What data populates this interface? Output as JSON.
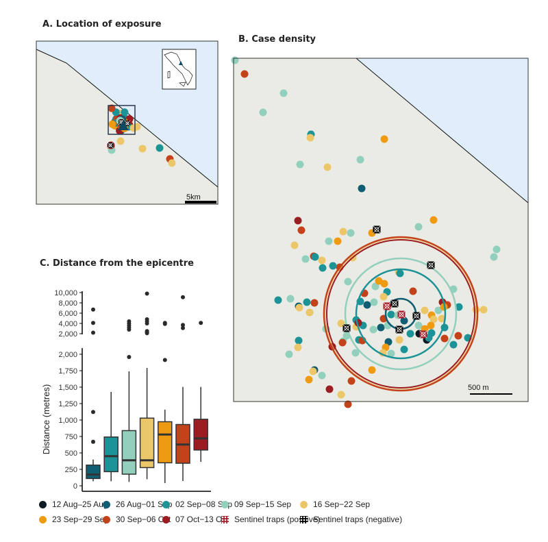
{
  "panels": {
    "a_title": "A. Location of exposure",
    "b_title": "B. Case density",
    "c_title": "C. Distance from the epicentre",
    "a_scale": "5km",
    "b_scale": "500 m"
  },
  "map_colors": {
    "sea": "#dfeefa",
    "land": "#ebebe6",
    "coast": "#111111"
  },
  "legend": [
    {
      "label": "12 Aug–25 Aug",
      "color": "#0b1a22",
      "type": "dot"
    },
    {
      "label": "26 Aug−01 Sep",
      "color": "#0f5e73",
      "type": "dot"
    },
    {
      "label": "02 Sep−08 Sep",
      "color": "#1c9396",
      "type": "dot"
    },
    {
      "label": "09 Sep−15 Sep",
      "color": "#92cfbd",
      "type": "dot"
    },
    {
      "label": "16 Sep−22 Sep",
      "color": "#ecc76a",
      "type": "dot"
    },
    {
      "label": "23 Sep−29 Sep",
      "color": "#ee9b12",
      "type": "dot"
    },
    {
      "label": "30 Sep−06 Oct",
      "color": "#c2431a",
      "type": "dot"
    },
    {
      "label": "07 Oct−13 Oct",
      "color": "#9b1c21",
      "type": "dot"
    },
    {
      "label": "Sentinel traps (positive)",
      "color": "#a31f2a",
      "type": "trap"
    },
    {
      "label": "Sentinel traps (negative)",
      "color": "#000000",
      "type": "trap"
    }
  ],
  "chart_data": {
    "type": "box",
    "ylabel": "Distance (metres)",
    "xlabel": "",
    "lower_ylim": [
      0,
      2000
    ],
    "lower_ticks": [
      "0",
      "250",
      "500",
      "750",
      "1,000",
      "1,250",
      "1,500",
      "1,750",
      "2,000"
    ],
    "upper_ylim": [
      2000,
      10000
    ],
    "upper_ticks": [
      "2,000",
      "4,000",
      "6,000",
      "8,000",
      "10,000"
    ],
    "boxes": [
      {
        "category": "26 Aug−01 Sep",
        "color": "#0f5e73",
        "low": 69,
        "q1": 111,
        "median": 170,
        "q3": 315,
        "high": 399,
        "outliers": [
          669,
          1123,
          2200,
          4100,
          6700
        ]
      },
      {
        "category": "02 Sep−08 Sep",
        "color": "#1c9396",
        "low": 69,
        "q1": 215,
        "median": 450,
        "q3": 742,
        "high": 1428,
        "outliers": []
      },
      {
        "category": "09 Sep−15 Sep",
        "color": "#92cfbd",
        "low": 59,
        "q1": 177,
        "median": 388,
        "q3": 839,
        "high": 1740,
        "outliers": [
          1958,
          2800,
          3200,
          3600,
          4000,
          4400
        ]
      },
      {
        "category": "16 Sep−22 Sep",
        "color": "#ecc76a",
        "low": 100,
        "q1": 277,
        "median": 388,
        "q3": 1029,
        "high": 1792,
        "outliers": [
          2100,
          2300,
          2500,
          4000,
          4400,
          4800,
          9800
        ]
      },
      {
        "category": "23 Sep−29 Sep",
        "color": "#ee9b12",
        "low": 42,
        "q1": 350,
        "median": 780,
        "q3": 974,
        "high": 1158,
        "outliers": [
          1913,
          3900,
          4100
        ]
      },
      {
        "category": "30 Sep−06 Oct",
        "color": "#c2431a",
        "low": 73,
        "q1": 343,
        "median": 627,
        "q3": 932,
        "high": 1504,
        "outliers": [
          3100,
          3700,
          9100
        ]
      },
      {
        "category": "07 Oct−13 Oct",
        "color": "#9b1c21",
        "low": 364,
        "q1": 544,
        "median": 721,
        "q3": 1012,
        "high": 1504,
        "outliers": [
          4100
        ]
      }
    ]
  }
}
